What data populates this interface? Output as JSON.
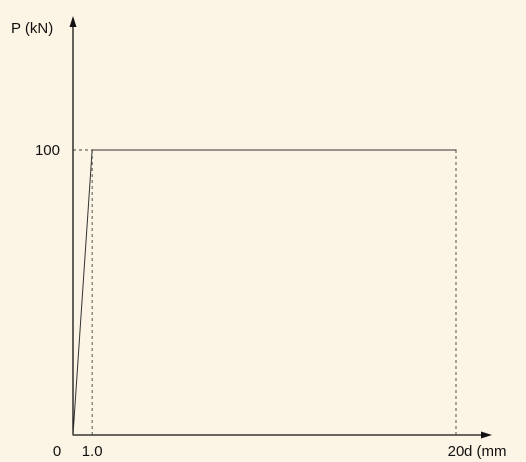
{
  "chart_data": {
    "type": "line",
    "title": "",
    "xlabel": "d (mm",
    "ylabel": "P (kN)",
    "x": [
      0,
      1.0,
      20
    ],
    "y": [
      0,
      100,
      100
    ],
    "xlim": [
      0,
      20
    ],
    "ylim": [
      0,
      100
    ],
    "xticks": [
      "0",
      "1.0",
      "20"
    ],
    "yticks": [
      "100"
    ],
    "grid": false,
    "legend": "none",
    "colors": {
      "background": "#fcf4e4",
      "line": "#333333"
    }
  }
}
